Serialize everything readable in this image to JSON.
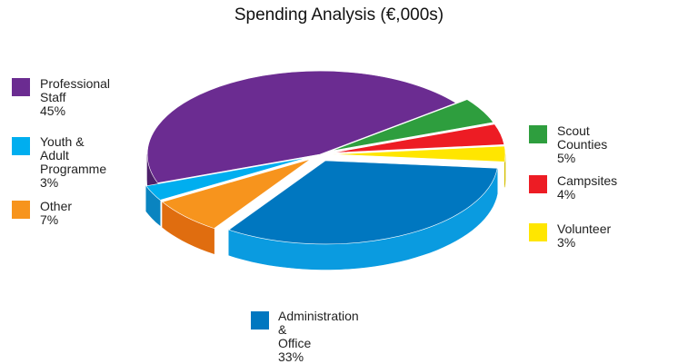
{
  "chart_data": {
    "type": "pie",
    "title": "Spending Analysis (€,000s)",
    "slices": [
      {
        "label": "Professional Staff",
        "percent_label": "45%",
        "value": 45,
        "color": "#6b2c91",
        "side_color": "#4d1f6a",
        "explode": false
      },
      {
        "label": "Scout Counties",
        "percent_label": "5%",
        "value": 5,
        "color": "#2e9e3e",
        "side_color": "#1f7a2d",
        "explode": true
      },
      {
        "label": "Campsites",
        "percent_label": "4%",
        "value": 4,
        "color": "#ed1c24",
        "side_color": "#b5141a",
        "explode": true
      },
      {
        "label": "Volunteer",
        "percent_label": "3%",
        "value": 3,
        "color": "#ffe600",
        "side_color": "#d4bf00",
        "explode": true
      },
      {
        "label": "Administration & Office",
        "percent_label": "33%",
        "value": 33,
        "color": "#0077c0",
        "side_color": "#0a9be0",
        "explode": true
      },
      {
        "label": "Other",
        "percent_label": "7%",
        "value": 7,
        "color": "#f7941d",
        "side_color": "#e06d0f",
        "explode": true
      },
      {
        "label": "Youth & Adult Programme",
        "percent_label": "3%",
        "value": 3,
        "color": "#00aeef",
        "side_color": "#0a84c0",
        "explode": true
      }
    ],
    "legend_labels": {
      "professional_staff": [
        "Professional Staff"
      ],
      "youth_adult": [
        "Youth & Adult",
        "Programme"
      ],
      "administration": [
        "Administration &",
        "Office"
      ]
    }
  }
}
